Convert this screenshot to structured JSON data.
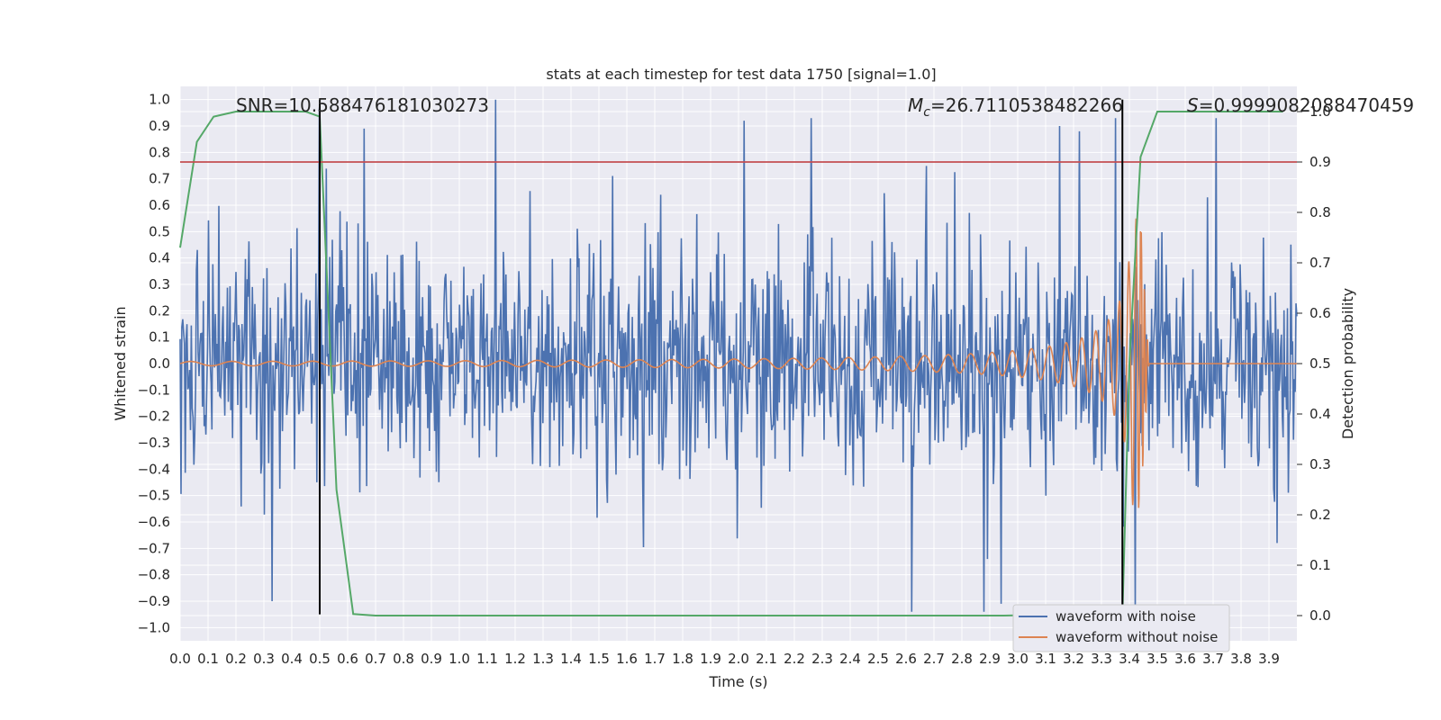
{
  "chart_data": {
    "type": "line",
    "title": "stats at each timestep for test data 1750 [signal=1.0]",
    "xlabel": "Time (s)",
    "ylabel": "Whitened strain",
    "y2label": "Detection probability",
    "xlim": [
      0.0,
      4.0
    ],
    "ylim": [
      -1.05,
      1.05
    ],
    "y2lim": [
      -0.05,
      1.05
    ],
    "grid": true,
    "x_ticks": [
      "0.0",
      "0.1",
      "0.2",
      "0.3",
      "0.4",
      "0.5",
      "0.6",
      "0.7",
      "0.8",
      "0.9",
      "1.0",
      "1.1",
      "1.2",
      "1.3",
      "1.4",
      "1.5",
      "1.6",
      "1.7",
      "1.8",
      "1.9",
      "2.0",
      "2.1",
      "2.2",
      "2.3",
      "2.4",
      "2.5",
      "2.6",
      "2.7",
      "2.8",
      "2.9",
      "3.0",
      "3.1",
      "3.2",
      "3.3",
      "3.4",
      "3.5",
      "3.6",
      "3.7",
      "3.8",
      "3.9"
    ],
    "y_ticks": [
      "1.0",
      "0.9",
      "0.8",
      "0.7",
      "0.6",
      "0.5",
      "0.4",
      "0.3",
      "0.2",
      "0.1",
      "0.0",
      "−0.1",
      "−0.2",
      "−0.3",
      "−0.4",
      "−0.5",
      "−0.6",
      "−0.7",
      "−0.8",
      "−0.9",
      "−1.0"
    ],
    "y2_ticks": [
      "1.0",
      "0.9",
      "0.8",
      "0.7",
      "0.6",
      "0.5",
      "0.4",
      "0.3",
      "0.2",
      "0.1",
      "0.0"
    ],
    "annotations": {
      "snr": "SNR=10.588476181030273",
      "mc_symbol": "M",
      "mc_sub": "c",
      "mc_value": "=26.7110538482266",
      "s_symbol": "S",
      "s_value": "=0.9999082088470459"
    },
    "legend": {
      "placement": "lower-right",
      "entries": [
        "waveform with noise",
        "waveform without noise"
      ]
    },
    "colors": {
      "noisy": "#4c72b0",
      "clean": "#dd8452",
      "probability": "#55a868",
      "threshold": "#c44e52",
      "markers": "#000000",
      "background": "#eaeaf2",
      "grid": "#ffffff"
    },
    "threshold_y2": 0.9,
    "markers_x": [
      0.5,
      3.375
    ],
    "markers_yrange": [
      -0.95,
      1.0
    ],
    "noise_series": {
      "name": "waveform with noise",
      "n_points": 1300,
      "std": 0.22,
      "peaks": [
        [
          1.13,
          1.0
        ],
        [
          0.5,
          0.97
        ],
        [
          3.35,
          0.93
        ],
        [
          0.66,
          0.89
        ],
        [
          2.02,
          0.92
        ],
        [
          2.26,
          0.93
        ],
        [
          3.71,
          0.93
        ],
        [
          3.15,
          0.9
        ],
        [
          3.22,
          0.88
        ],
        [
          0.33,
          -0.9
        ],
        [
          2.62,
          -0.94
        ],
        [
          2.88,
          -0.94
        ],
        [
          2.94,
          -0.91
        ],
        [
          3.42,
          -0.95
        ]
      ]
    },
    "clean_series": {
      "name": "waveform without noise",
      "chirp_start": 0.0,
      "merger_time": 3.44,
      "base_freq": 10.6,
      "amp_start": 0.008,
      "amp_peak": 0.55,
      "end_value": 0.0
    },
    "probability_series": {
      "name": "detection probability",
      "x": [
        0.0,
        0.06,
        0.12,
        0.2,
        0.3,
        0.4,
        0.45,
        0.5,
        0.56,
        0.62,
        0.7,
        2.6,
        2.95,
        3.2,
        3.3,
        3.375,
        3.4,
        3.44,
        3.5,
        3.95
      ],
      "y": [
        0.73,
        0.94,
        0.99,
        1.0,
        1.0,
        1.0,
        1.0,
        0.99,
        0.25,
        0.003,
        0.0,
        0.0,
        0.0,
        0.003,
        0.005,
        0.005,
        0.5,
        0.91,
        1.0,
        1.0
      ]
    }
  }
}
